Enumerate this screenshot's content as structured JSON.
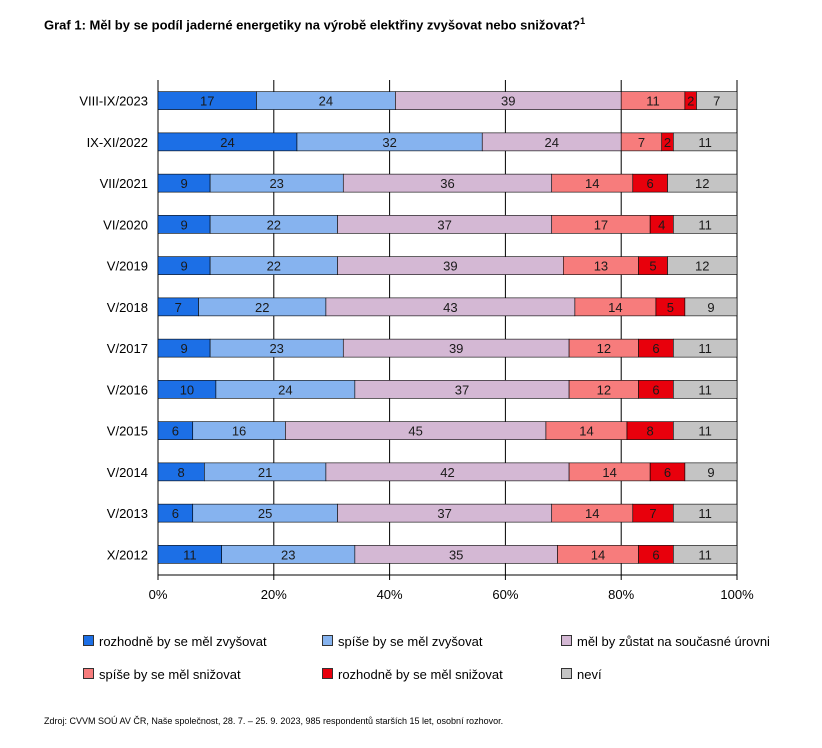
{
  "title": "Graf 1: Měl by se podíl jaderné energetiky na výrobě elektřiny zvyšovat nebo snižovat?",
  "title_sup": "1",
  "source": "Zdroj: CVVM SOÚ AV ČR, Naše společnost, 28. 7. – 25. 9. 2023, 985 respondentů starších 15 let, osobní rozhovor.",
  "chart_data": {
    "type": "bar",
    "orientation": "horizontal",
    "stacked": "percent",
    "title": "Graf 1: Měl by se podíl jaderné energetiky na výrobě elektřiny zvyšovat nebo snižovat?",
    "categories": [
      "VIII-IX/2023",
      "IX-XI/2022",
      "VII/2021",
      "VI/2020",
      "V/2019",
      "V/2018",
      "V/2017",
      "V/2016",
      "V/2015",
      "V/2014",
      "V/2013",
      "X/2012"
    ],
    "xlim": [
      0,
      100
    ],
    "xticks": [
      "0%",
      "20%",
      "40%",
      "60%",
      "80%",
      "100%"
    ],
    "grid": true,
    "legend_position": "bottom",
    "series": [
      {
        "name": "rozhodně by se měl zvyšovat",
        "color": "#1c6fe6",
        "values": [
          17,
          24,
          9,
          9,
          9,
          7,
          9,
          10,
          6,
          8,
          6,
          11
        ]
      },
      {
        "name": "spíše by se měl zvyšovat",
        "color": "#86b3ef",
        "values": [
          24,
          32,
          23,
          22,
          22,
          22,
          23,
          24,
          16,
          21,
          25,
          23
        ]
      },
      {
        "name": "měl by zůstat na současné úrovni",
        "color": "#d4b8d4",
        "values": [
          39,
          24,
          36,
          37,
          39,
          43,
          39,
          37,
          45,
          42,
          37,
          35
        ]
      },
      {
        "name": "spíše by se měl snižovat",
        "color": "#f77c7c",
        "values": [
          11,
          7,
          14,
          17,
          13,
          14,
          12,
          12,
          14,
          14,
          14,
          14
        ]
      },
      {
        "name": "rozhodně by se měl snižovat",
        "color": "#e8000c",
        "values": [
          2,
          2,
          6,
          4,
          5,
          5,
          6,
          6,
          8,
          6,
          7,
          6
        ]
      },
      {
        "name": "neví",
        "color": "#c4c4c4",
        "values": [
          7,
          11,
          12,
          11,
          12,
          9,
          11,
          11,
          11,
          9,
          11,
          11
        ]
      }
    ]
  }
}
